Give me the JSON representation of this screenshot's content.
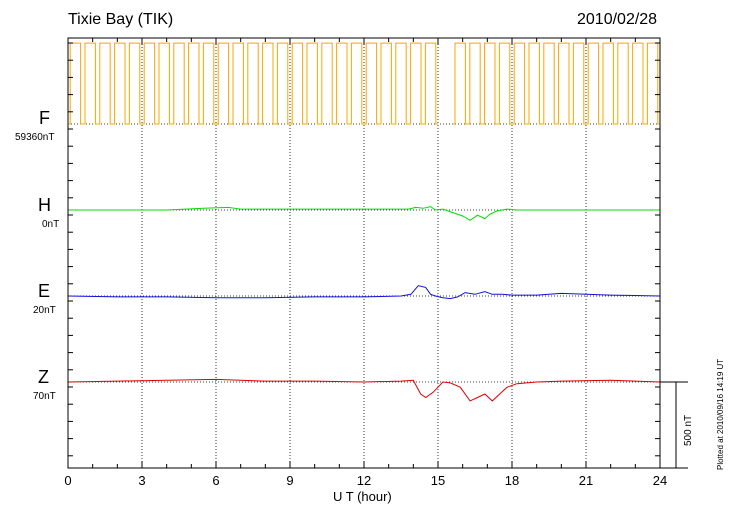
{
  "header": {
    "station": "Tixie Bay (TIK)",
    "date": "2010/02/28",
    "plotted_note": "Plotted at 2010/09/16 14:19 UT"
  },
  "chart_data": {
    "type": "line",
    "title": "Tixie Bay (TIK)",
    "xlabel": "U T (hour)",
    "ylabel": "",
    "xlim": [
      0,
      24
    ],
    "xticks": [
      0,
      3,
      6,
      9,
      12,
      15,
      18,
      21,
      24
    ],
    "xtick_labels": [
      "0",
      "3",
      "6",
      "9",
      "12",
      "15",
      "18",
      "21",
      "24"
    ],
    "grid": true,
    "scale_bar_label": "500 nT",
    "scale_bar_nT": 500,
    "series": [
      {
        "name": "F",
        "baseline_label": "59360nT",
        "color": "#f5a800",
        "kind": "square",
        "step_hours": 0.6,
        "high_nT": 470,
        "low_nT": 0,
        "gaps": [
          [
            4.65,
            4.8
          ],
          [
            14.7,
            15.4
          ]
        ]
      },
      {
        "name": "H",
        "baseline_label": "0nT",
        "color": "#00dd00",
        "kind": "line",
        "x": [
          0,
          2,
          4,
          5.5,
          6.5,
          7,
          8,
          10,
          12,
          13.8,
          14.1,
          14.4,
          14.7,
          14.9,
          15.2,
          15.6,
          16,
          16.3,
          16.6,
          16.9,
          17.1,
          17.4,
          17.8,
          18.2,
          20,
          22,
          24
        ],
        "values": [
          0,
          0,
          0,
          10,
          15,
          5,
          5,
          5,
          5,
          5,
          15,
          10,
          20,
          0,
          5,
          -15,
          -35,
          -60,
          -30,
          -50,
          -25,
          -5,
          5,
          0,
          0,
          0,
          0
        ]
      },
      {
        "name": "E",
        "baseline_label": "20nT",
        "color": "#1010dd",
        "kind": "line",
        "x": [
          0,
          2,
          4,
          6,
          8,
          10,
          12,
          13.5,
          13.9,
          14.2,
          14.5,
          14.7,
          14.9,
          15.2,
          15.5,
          15.8,
          16.1,
          16.5,
          16.9,
          17.2,
          17.6,
          18,
          19,
          20,
          21,
          22,
          24
        ],
        "values": [
          0,
          -5,
          -5,
          -10,
          -10,
          -5,
          -5,
          0,
          10,
          60,
          50,
          10,
          0,
          -10,
          -15,
          -5,
          20,
          10,
          25,
          10,
          10,
          5,
          5,
          15,
          10,
          5,
          0
        ]
      },
      {
        "name": "Z",
        "baseline_label": "70nT",
        "color": "#e00000",
        "kind": "line",
        "x": [
          0,
          2,
          4,
          6,
          8,
          10,
          12,
          13.5,
          14,
          14.3,
          14.5,
          14.8,
          15.2,
          15.5,
          15.9,
          16.3,
          16.6,
          16.9,
          17.2,
          17.5,
          17.8,
          18.2,
          19,
          20,
          22,
          24
        ],
        "values": [
          0,
          5,
          10,
          15,
          5,
          5,
          0,
          5,
          10,
          -70,
          -90,
          -60,
          0,
          -5,
          -30,
          -110,
          -90,
          -70,
          -110,
          -70,
          -30,
          -10,
          0,
          5,
          10,
          0
        ]
      }
    ]
  }
}
